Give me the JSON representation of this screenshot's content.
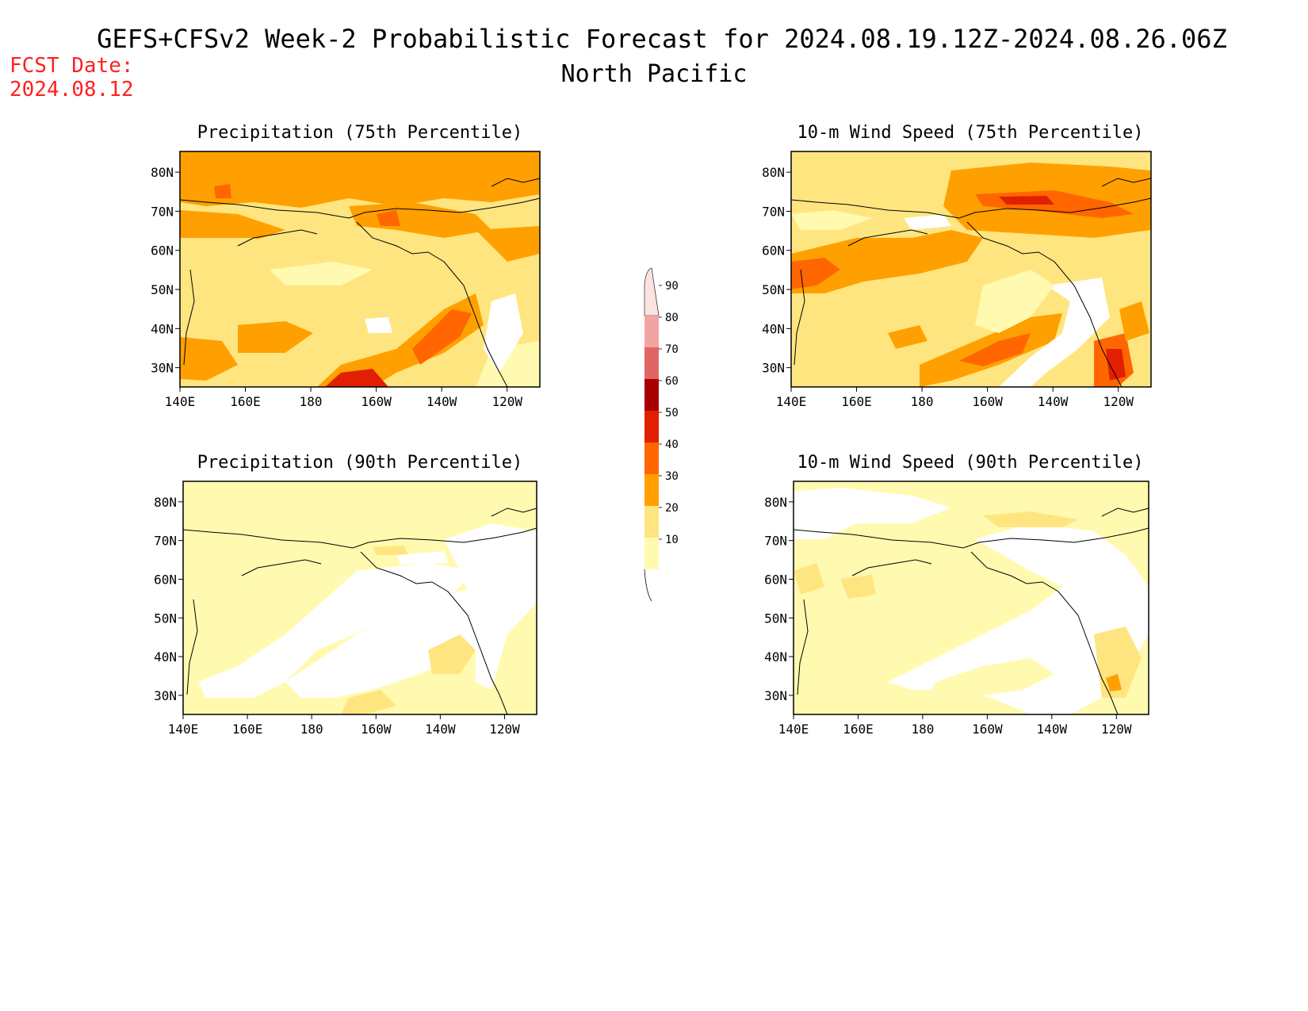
{
  "header": {
    "title": "GEFS+CFSv2 Week-2 Probabilistic Forecast for 2024.08.19.12Z-2024.08.26.06Z",
    "subtitle": "North Pacific",
    "fcst_label": "FCST Date:",
    "fcst_date": "2024.08.12",
    "fcst_color": "#ff2020"
  },
  "panels": [
    {
      "id": "precip-75",
      "title": "Precipitation (75th Percentile)"
    },
    {
      "id": "wind-75",
      "title": "10-m Wind Speed (75th Percentile)"
    },
    {
      "id": "precip-90",
      "title": "Precipitation (90th Percentile)"
    },
    {
      "id": "wind-90",
      "title": "10-m Wind Speed (90th Percentile)"
    }
  ],
  "axes": {
    "lat_labels": [
      "80N",
      "70N",
      "60N",
      "50N",
      "40N",
      "30N"
    ],
    "lon_labels": [
      "140E",
      "160E",
      "180",
      "160W",
      "140W",
      "120W"
    ]
  },
  "colorbar": {
    "labels": [
      "90",
      "80",
      "70",
      "60",
      "50",
      "40",
      "30",
      "20",
      "10"
    ],
    "colors": [
      "#fde2e2",
      "#f4a3a3",
      "#e06666",
      "#a80000",
      "#e02000",
      "#ff6600",
      "#ffa000",
      "#ffe580",
      "#fffab0"
    ]
  }
}
